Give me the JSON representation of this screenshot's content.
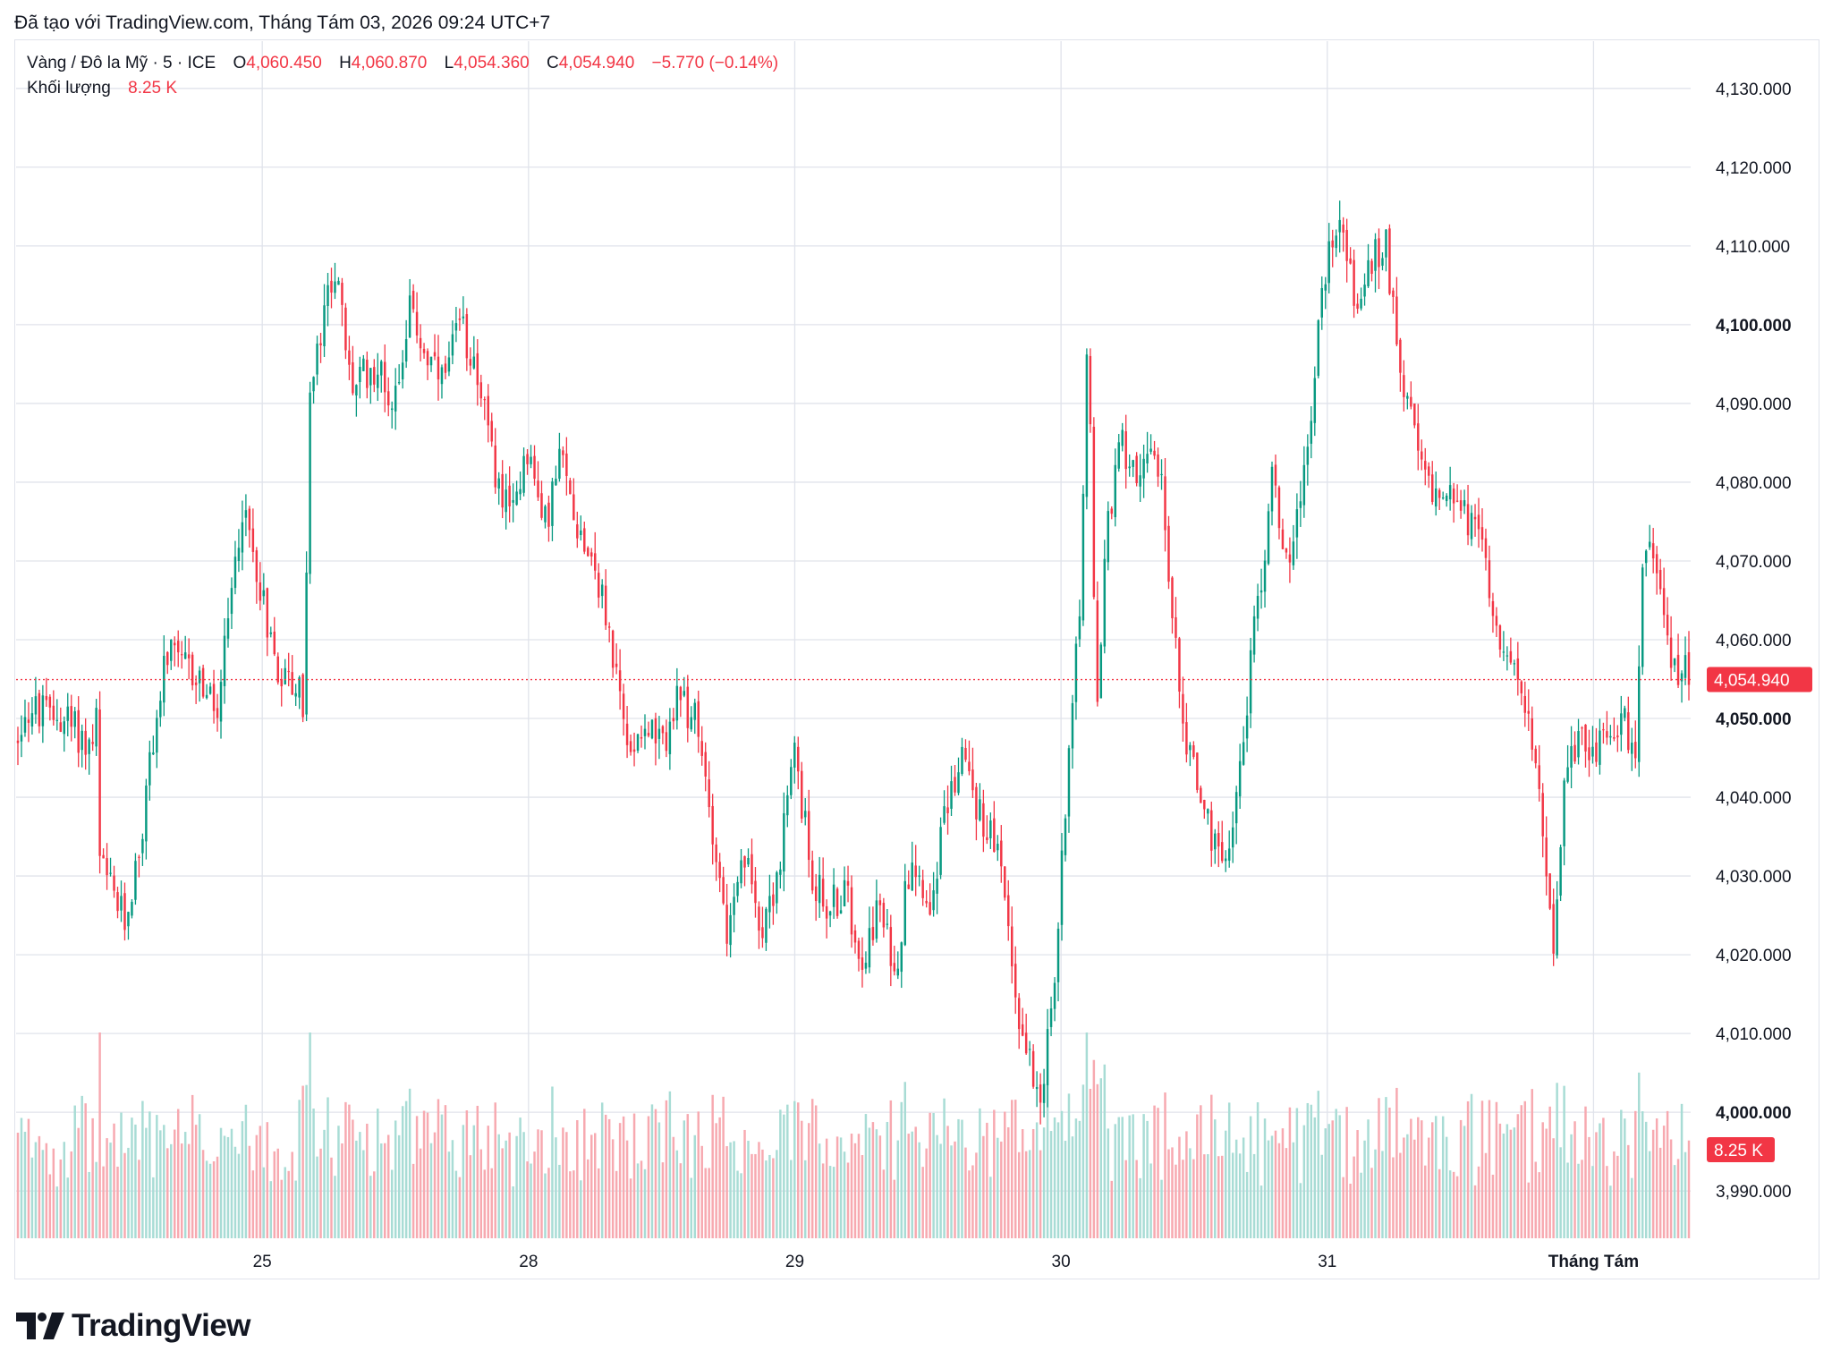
{
  "header": {
    "attribution": "Đã tạo với TradingView.com, Tháng Tám 03, 2026 09:24 UTC+7"
  },
  "legend": {
    "symbol": "Vàng / Đô la Mỹ · 5 · ICE",
    "open_label": "O",
    "open_value": "4,060.450",
    "high_label": "H",
    "high_value": "4,060.870",
    "low_label": "L",
    "low_value": "4,054.360",
    "close_label": "C",
    "close_value": "4,054.940",
    "change": "−5.770 (−0.14%)",
    "volume_label": "Khối lượng",
    "volume_value": "8.25 K"
  },
  "branding": {
    "logo_text": "TradingView",
    "logo_icon": "tradingview-logo-icon"
  },
  "colors": {
    "up": "#089981",
    "down": "#f23645",
    "up_volume": "#a8dcd5",
    "down_volume": "#f7a9b0",
    "grid": "#e0e3eb"
  },
  "chart_data": {
    "type": "candlestick",
    "symbol": "Vàng / Đô la Mỹ",
    "interval": "5",
    "exchange": "ICE",
    "y_axis": {
      "range": [
        3984,
        4136
      ],
      "ticks": [
        {
          "value": 4130,
          "label": "4,130.000",
          "bold": false
        },
        {
          "value": 4120,
          "label": "4,120.000",
          "bold": false
        },
        {
          "value": 4110,
          "label": "4,110.000",
          "bold": false
        },
        {
          "value": 4100,
          "label": "4,100.000",
          "bold": true
        },
        {
          "value": 4090,
          "label": "4,090.000",
          "bold": false
        },
        {
          "value": 4080,
          "label": "4,080.000",
          "bold": false
        },
        {
          "value": 4070,
          "label": "4,070.000",
          "bold": false
        },
        {
          "value": 4060,
          "label": "4,060.000",
          "bold": false
        },
        {
          "value": 4050,
          "label": "4,050.000",
          "bold": true
        },
        {
          "value": 4040,
          "label": "4,040.000",
          "bold": false
        },
        {
          "value": 4030,
          "label": "4,030.000",
          "bold": false
        },
        {
          "value": 4020,
          "label": "4,020.000",
          "bold": false
        },
        {
          "value": 4010,
          "label": "4,010.000",
          "bold": false
        },
        {
          "value": 4000,
          "label": "4,000.000",
          "bold": true
        },
        {
          "value": 3990,
          "label": "3,990.000",
          "bold": false
        }
      ]
    },
    "x_axis": {
      "ticks": [
        {
          "label": "25",
          "pos": 0.147,
          "bold": false
        },
        {
          "label": "28",
          "pos": 0.306,
          "bold": false
        },
        {
          "label": "29",
          "pos": 0.465,
          "bold": false
        },
        {
          "label": "30",
          "pos": 0.624,
          "bold": false
        },
        {
          "label": "31",
          "pos": 0.783,
          "bold": false
        },
        {
          "label": "Tháng Tám",
          "pos": 0.942,
          "bold": true
        }
      ]
    },
    "last_price": {
      "value": 4054.94,
      "label": "4,054.940"
    },
    "last_volume": {
      "label": "8.25 K"
    },
    "grid": true,
    "anchors": [
      [
        0.0,
        4047
      ],
      [
        0.005,
        4051
      ],
      [
        0.03,
        4050
      ],
      [
        0.045,
        4046
      ],
      [
        0.048,
        4050
      ],
      [
        0.049,
        4032
      ],
      [
        0.065,
        4024
      ],
      [
        0.075,
        4035
      ],
      [
        0.08,
        4045
      ],
      [
        0.09,
        4058
      ],
      [
        0.11,
        4055
      ],
      [
        0.12,
        4050
      ],
      [
        0.13,
        4068
      ],
      [
        0.135,
        4077
      ],
      [
        0.145,
        4068
      ],
      [
        0.155,
        4057
      ],
      [
        0.17,
        4053
      ],
      [
        0.172,
        4051
      ],
      [
        0.175,
        4090
      ],
      [
        0.19,
        4108
      ],
      [
        0.2,
        4092
      ],
      [
        0.215,
        4095
      ],
      [
        0.225,
        4090
      ],
      [
        0.235,
        4102
      ],
      [
        0.245,
        4096
      ],
      [
        0.255,
        4092
      ],
      [
        0.265,
        4100
      ],
      [
        0.275,
        4095
      ],
      [
        0.285,
        4082
      ],
      [
        0.295,
        4075
      ],
      [
        0.305,
        4085
      ],
      [
        0.315,
        4074
      ],
      [
        0.325,
        4083
      ],
      [
        0.335,
        4075
      ],
      [
        0.345,
        4070
      ],
      [
        0.355,
        4060
      ],
      [
        0.365,
        4046
      ],
      [
        0.375,
        4050
      ],
      [
        0.385,
        4046
      ],
      [
        0.395,
        4052
      ],
      [
        0.405,
        4050
      ],
      [
        0.415,
        4038
      ],
      [
        0.425,
        4022
      ],
      [
        0.435,
        4032
      ],
      [
        0.445,
        4024
      ],
      [
        0.455,
        4030
      ],
      [
        0.465,
        4046
      ],
      [
        0.475,
        4030
      ],
      [
        0.485,
        4026
      ],
      [
        0.495,
        4028
      ],
      [
        0.505,
        4020
      ],
      [
        0.515,
        4026
      ],
      [
        0.525,
        4018
      ],
      [
        0.535,
        4034
      ],
      [
        0.545,
        4026
      ],
      [
        0.555,
        4038
      ],
      [
        0.565,
        4046
      ],
      [
        0.575,
        4038
      ],
      [
        0.585,
        4034
      ],
      [
        0.592,
        4024
      ],
      [
        0.6,
        4010
      ],
      [
        0.612,
        4003
      ],
      [
        0.62,
        4015
      ],
      [
        0.628,
        4045
      ],
      [
        0.636,
        4068
      ],
      [
        0.64,
        4100
      ],
      [
        0.645,
        4050
      ],
      [
        0.652,
        4075
      ],
      [
        0.66,
        4085
      ],
      [
        0.668,
        4082
      ],
      [
        0.678,
        4082
      ],
      [
        0.685,
        4080
      ],
      [
        0.69,
        4062
      ],
      [
        0.7,
        4046
      ],
      [
        0.71,
        4038
      ],
      [
        0.72,
        4030
      ],
      [
        0.73,
        4042
      ],
      [
        0.74,
        4062
      ],
      [
        0.75,
        4080
      ],
      [
        0.76,
        4070
      ],
      [
        0.768,
        4080
      ],
      [
        0.775,
        4092
      ],
      [
        0.78,
        4105
      ],
      [
        0.79,
        4115
      ],
      [
        0.8,
        4102
      ],
      [
        0.81,
        4108
      ],
      [
        0.818,
        4110
      ],
      [
        0.825,
        4098
      ],
      [
        0.835,
        4085
      ],
      [
        0.845,
        4078
      ],
      [
        0.855,
        4080
      ],
      [
        0.865,
        4076
      ],
      [
        0.875,
        4072
      ],
      [
        0.885,
        4062
      ],
      [
        0.895,
        4055
      ],
      [
        0.905,
        4048
      ],
      [
        0.915,
        4030
      ],
      [
        0.918,
        4022
      ],
      [
        0.925,
        4042
      ],
      [
        0.935,
        4048
      ],
      [
        0.945,
        4046
      ],
      [
        0.955,
        4050
      ],
      [
        0.965,
        4048
      ],
      [
        0.968,
        4046
      ],
      [
        0.972,
        4075
      ],
      [
        0.978,
        4068
      ],
      [
        0.985,
        4065
      ],
      [
        0.99,
        4055
      ],
      [
        0.995,
        4058
      ],
      [
        1.0,
        4054.94
      ]
    ],
    "gaps": [
      0.172,
      0.048
    ]
  }
}
